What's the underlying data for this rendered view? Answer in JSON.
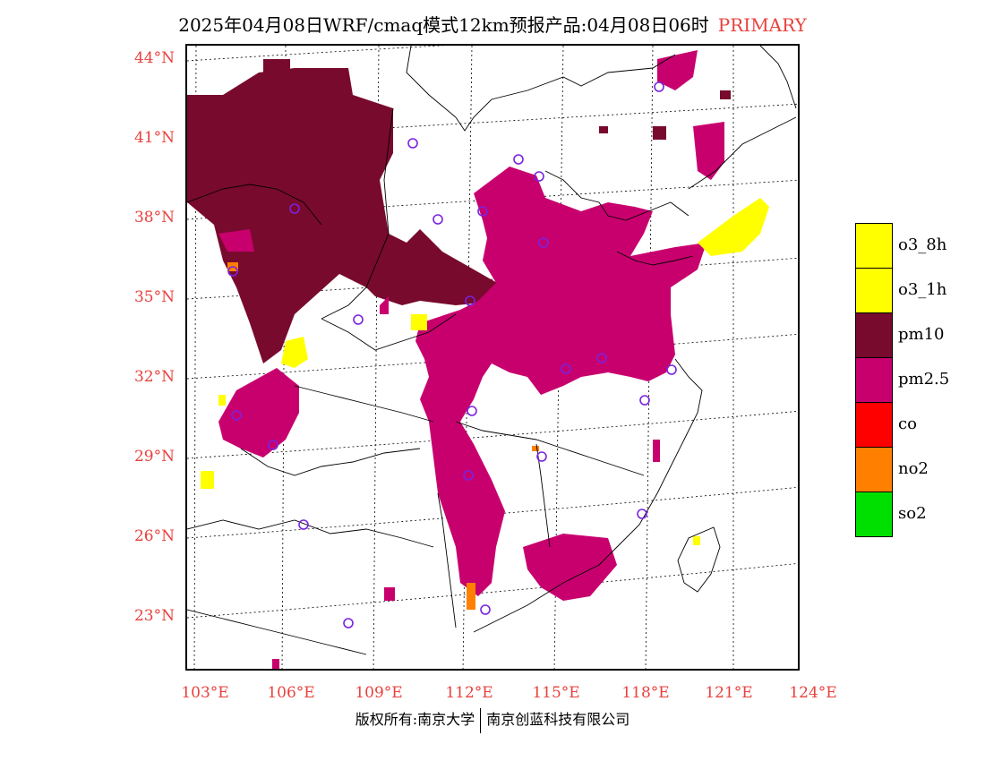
{
  "title": {
    "main": "2025年04月08日WRF/cmaq模式12km预报产品:04月08日06时",
    "tag": "PRIMARY"
  },
  "map": {
    "lat_labels": [
      "44°N",
      "41°N",
      "38°N",
      "35°N",
      "32°N",
      "29°N",
      "26°N",
      "23°N"
    ],
    "lon_labels": [
      "103°E",
      "106°E",
      "109°E",
      "112°E",
      "115°E",
      "118°E",
      "121°E",
      "124°E"
    ],
    "lat_range": [
      21,
      44.5
    ],
    "lon_range": [
      103,
      124
    ],
    "colors": {
      "o3_8h": "#ffff00",
      "o3_1h": "#ffff00",
      "pm10": "#780a2d",
      "pm25": "#c8006e",
      "co": "#ff0000",
      "no2": "#ff8000",
      "so2": "#00e000",
      "station": "#7a22e0"
    }
  },
  "legend": {
    "items": [
      {
        "label": "o3_8h",
        "color": "#ffff00"
      },
      {
        "label": "o3_1h",
        "color": "#ffff00"
      },
      {
        "label": "pm10",
        "color": "#780a2d"
      },
      {
        "label": "pm2.5",
        "color": "#c8006e"
      },
      {
        "label": "co",
        "color": "#ff0000"
      },
      {
        "label": "no2",
        "color": "#ff8000"
      },
      {
        "label": "so2",
        "color": "#00e000"
      }
    ]
  },
  "footer": {
    "left": "版权所有:南京大学",
    "right": "南京创蓝科技有限公司"
  }
}
